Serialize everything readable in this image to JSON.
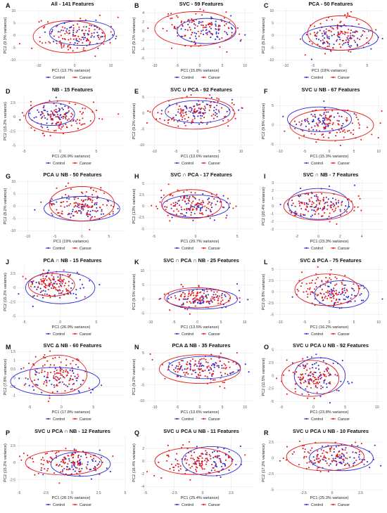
{
  "legend": {
    "control": "Control",
    "cancer": "Cancer"
  },
  "colors": {
    "control": "#2b2bd6",
    "cancer": "#e31a1c"
  },
  "chart_data": [
    {
      "type": "scatter",
      "label": "A",
      "title": "All - 141 Features",
      "xlabel": "PC1 (13.7% variance)",
      "ylabel": "PC2 (9.3% variance)",
      "xlim": [
        -16,
        14
      ],
      "ylim": [
        -11,
        11
      ],
      "xticks": [
        -10,
        0,
        10
      ],
      "yticks": [
        -10,
        -5,
        0,
        5,
        10
      ],
      "control": {
        "center": [
          2,
          1
        ],
        "rx": 9,
        "ry": 5
      },
      "cancer": {
        "center": [
          -1.5,
          -0.5
        ],
        "rx": 10,
        "ry": 6.5
      }
    },
    {
      "type": "scatter",
      "label": "B",
      "title": "SVC - 59 Features",
      "xlabel": "PC1 (15.8% variance)",
      "ylabel": "PC2 (9.1% variance)",
      "xlim": [
        -12,
        12
      ],
      "ylim": [
        -7,
        5
      ],
      "xticks": [
        -10,
        -5,
        0,
        5,
        10
      ],
      "yticks": [
        -6,
        -4,
        -2,
        0,
        2,
        4
      ],
      "control": {
        "center": [
          1.5,
          0
        ],
        "rx": 6.5,
        "ry": 2.8
      },
      "cancer": {
        "center": [
          -1,
          0.5
        ],
        "rx": 9,
        "ry": 3.8
      }
    },
    {
      "type": "scatter",
      "label": "C",
      "title": "PCA - 50 Features",
      "xlabel": "PC1 (19% variance)",
      "ylabel": "PC2 (8.2% variance)",
      "xlim": [
        -12,
        8
      ],
      "ylim": [
        -11,
        11
      ],
      "xticks": [
        -10,
        -5,
        0,
        5
      ],
      "yticks": [
        -10,
        -5,
        0,
        5,
        10
      ],
      "control": {
        "center": [
          0,
          -1
        ],
        "rx": 7,
        "ry": 5
      },
      "cancer": {
        "center": [
          0,
          1
        ],
        "rx": 6,
        "ry": 7
      }
    },
    {
      "type": "scatter",
      "label": "D",
      "title": "NB - 15 Features",
      "xlabel": "PC1 (26.9% variance)",
      "ylabel": "PC2 (15.2% variance)",
      "xlim": [
        -6,
        9
      ],
      "ylim": [
        -5.5,
        4
      ],
      "xticks": [
        -5,
        0,
        5
      ],
      "yticks": [
        -5,
        -2.5,
        0,
        2.5
      ],
      "control": {
        "center": [
          -1.2,
          0.5
        ],
        "rx": 3.2,
        "ry": 2
      },
      "cancer": {
        "center": [
          0,
          0
        ],
        "rx": 4.8,
        "ry": 2.8
      }
    },
    {
      "type": "scatter",
      "label": "E",
      "title": "SVC ∪ PCA - 92 Features",
      "xlabel": "PC1 (13.6% variance)",
      "ylabel": "PC2 (9.2% variance)",
      "xlim": [
        -12,
        13
      ],
      "ylim": [
        -11,
        6
      ],
      "xticks": [
        -10,
        -5,
        0,
        5,
        10
      ],
      "yticks": [
        -10,
        -5,
        0,
        5
      ],
      "control": {
        "center": [
          0,
          0.5
        ],
        "rx": 7.5,
        "ry": 3.5
      },
      "cancer": {
        "center": [
          -1,
          0
        ],
        "rx": 9.5,
        "ry": 5
      }
    },
    {
      "type": "scatter",
      "label": "F",
      "title": "SVC ∪ NB - 67 Features",
      "xlabel": "PC1 (15.3% variance)",
      "ylabel": "PC2 (9.8% variance)",
      "xlim": [
        -11,
        11
      ],
      "ylim": [
        -6,
        8
      ],
      "xticks": [
        -10,
        -5,
        0,
        5,
        10
      ],
      "yticks": [
        -5,
        0,
        5
      ],
      "control": {
        "center": [
          -2,
          1.5
        ],
        "rx": 6.5,
        "ry": 3.2
      },
      "cancer": {
        "center": [
          0.5,
          0
        ],
        "rx": 8.5,
        "ry": 4
      }
    },
    {
      "type": "scatter",
      "label": "G",
      "title": "PCA ∪ NB - 50 Features",
      "xlabel": "PC1 (19% variance)",
      "ylabel": "PC2 (8.2% variance)",
      "xlim": [
        -12,
        8
      ],
      "ylim": [
        -11,
        11
      ],
      "xticks": [
        -10,
        -5,
        0,
        5
      ],
      "yticks": [
        -10,
        -5,
        0,
        5,
        10
      ],
      "control": {
        "center": [
          0,
          -1
        ],
        "rx": 7,
        "ry": 5
      },
      "cancer": {
        "center": [
          0,
          1
        ],
        "rx": 6,
        "ry": 7
      }
    },
    {
      "type": "scatter",
      "label": "H",
      "title": "SVC ∩ PCA - 17 Features",
      "xlabel": "PC1 (20.7% variance)",
      "ylabel": "PC2 (13% variance)",
      "xlim": [
        -6,
        7
      ],
      "ylim": [
        -6,
        6
      ],
      "xticks": [
        -5,
        0,
        5
      ],
      "yticks": [
        -5,
        -2.5,
        0,
        2.5,
        5
      ],
      "control": {
        "center": [
          0,
          0
        ],
        "rx": 4,
        "ry": 2.5
      },
      "cancer": {
        "center": [
          -0.5,
          0.5
        ],
        "rx": 3.6,
        "ry": 3.2
      }
    },
    {
      "type": "scatter",
      "label": "I",
      "title": "SVC ∩ NB - 7 Features",
      "xlabel": "PC1 (23.3% variance)",
      "ylabel": "PC2 (20.4% variance)",
      "xlim": [
        -4,
        6
      ],
      "ylim": [
        -3.5,
        3.5
      ],
      "xticks": [
        -2,
        0,
        2,
        4
      ],
      "yticks": [
        -3,
        -2,
        -1,
        0,
        1,
        2,
        3
      ],
      "control": {
        "center": [
          0,
          0.3
        ],
        "rx": 2.8,
        "ry": 2
      },
      "cancer": {
        "center": [
          0,
          0
        ],
        "rx": 3.2,
        "ry": 1.8
      }
    },
    {
      "type": "scatter",
      "label": "J",
      "title": "PCA ∩ NB - 15 Features",
      "xlabel": "PC1 (26.9% variance)",
      "ylabel": "PC2 (15.2% variance)",
      "xlim": [
        -6,
        9
      ],
      "ylim": [
        -5.5,
        4
      ],
      "xticks": [
        -5,
        0,
        5
      ],
      "yticks": [
        -5,
        -2.5,
        0,
        2.5
      ],
      "control": {
        "center": [
          0,
          0
        ],
        "rx": 4.8,
        "ry": 2.8
      },
      "cancer": {
        "center": [
          -1.2,
          0.5
        ],
        "rx": 3.2,
        "ry": 2
      }
    },
    {
      "type": "scatter",
      "label": "K",
      "title": "SVC ∩ PCA ∩ NB - 25 Features",
      "xlabel": "PC1 (13.5% variance)",
      "ylabel": "PC2 (9.5% variance)",
      "xlim": [
        -11,
        12
      ],
      "ylim": [
        -7,
        12
      ],
      "xticks": [
        -10,
        -5,
        0,
        5,
        10
      ],
      "yticks": [
        -5,
        0,
        5,
        10
      ],
      "control": {
        "center": [
          1,
          0
        ],
        "rx": 7.5,
        "ry": 3.5
      },
      "cancer": {
        "center": [
          0,
          0.5
        ],
        "rx": 7,
        "ry": 3.5
      }
    },
    {
      "type": "scatter",
      "label": "L",
      "title": "SVC Δ PCA - 75 Features",
      "xlabel": "PC1 (16.2% variance)",
      "ylabel": "PC2 (9.8% variance)",
      "xlim": [
        -11,
        11
      ],
      "ylim": [
        -6,
        6
      ],
      "xticks": [
        -10,
        -5,
        0,
        5,
        10
      ],
      "yticks": [
        -5,
        -2.5,
        0,
        2.5,
        5
      ],
      "control": {
        "center": [
          2.5,
          -0.5
        ],
        "rx": 5.5,
        "ry": 3
      },
      "cancer": {
        "center": [
          -0.5,
          0.5
        ],
        "rx": 6.5,
        "ry": 3.5
      }
    },
    {
      "type": "scatter",
      "label": "M",
      "title": "SVC Δ NB - 60 Features",
      "xlabel": "PC1 (17.8% variance)",
      "ylabel": "PC2 (7.8% variance)",
      "xlim": [
        -7,
        10
      ],
      "ylim": [
        -1.5,
        1.6
      ],
      "xticks": [
        -5,
        0,
        5
      ],
      "yticks": [
        -1,
        -0.5,
        0,
        0.5,
        1,
        1.5
      ],
      "control": {
        "center": [
          -1,
          -0.2
        ],
        "rx": 7,
        "ry": 0.8
      },
      "cancer": {
        "center": [
          -0.5,
          0.2
        ],
        "rx": 4.5,
        "ry": 1.1
      }
    },
    {
      "type": "scatter",
      "label": "N",
      "title": "PCA Δ NB - 35 Features",
      "xlabel": "PC1 (13.6% variance)",
      "ylabel": "PC2 (9.2% variance)",
      "xlim": [
        -12,
        12
      ],
      "ylim": [
        -11,
        6
      ],
      "xticks": [
        -10,
        -5,
        0,
        5,
        10
      ],
      "yticks": [
        -10,
        -5,
        0,
        5
      ],
      "control": {
        "center": [
          1,
          0.5
        ],
        "rx": 8,
        "ry": 3.5
      },
      "cancer": {
        "center": [
          0,
          0
        ],
        "rx": 9,
        "ry": 4.5
      }
    },
    {
      "type": "scatter",
      "label": "O",
      "title": "SVC ∪ PCA ∪ NB - 92 Features",
      "xlabel": "PC1 (23.8% variance)",
      "ylabel": "PC2 (11.5% variance)",
      "xlim": [
        -6,
        11
      ],
      "ylim": [
        -5.5,
        5
      ],
      "xticks": [
        -5,
        0,
        5,
        10
      ],
      "yticks": [
        -5,
        -2.5,
        0,
        2.5,
        5
      ],
      "control": {
        "center": [
          1,
          0
        ],
        "rx": 4,
        "ry": 3.5
      },
      "cancer": {
        "center": [
          -0.5,
          -0.5
        ],
        "rx": 4.5,
        "ry": 3.5
      }
    },
    {
      "type": "scatter",
      "label": "P",
      "title": "SVC ∪ PCA ∩ NB - 12 Features",
      "xlabel": "PC1 (28.1% variance)",
      "ylabel": "PC2 (15.2% variance)",
      "xlim": [
        -5.2,
        5
      ],
      "ylim": [
        -4,
        4
      ],
      "xticks": [
        -5,
        -2.5,
        0,
        2.5,
        5
      ],
      "yticks": [
        -2.5,
        0,
        2.5
      ],
      "control": {
        "center": [
          0.8,
          -0.2
        ],
        "rx": 2.8,
        "ry": 1.8
      },
      "cancer": {
        "center": [
          -0.8,
          0
        ],
        "rx": 3.6,
        "ry": 1.8
      }
    },
    {
      "type": "scatter",
      "label": "Q",
      "title": "SVC ∪ PCA ∪ NB - 11 Features",
      "xlabel": "PC1 (25.4% variance)",
      "ylabel": "PC2 (16.4% variance)",
      "xlim": [
        -5,
        4.5
      ],
      "ylim": [
        -4.5,
        4
      ],
      "xticks": [
        -5,
        -2.5,
        0,
        2.5
      ],
      "yticks": [
        -4,
        -2,
        0,
        2
      ],
      "control": {
        "center": [
          0.8,
          0
        ],
        "rx": 2.6,
        "ry": 2.3
      },
      "cancer": {
        "center": [
          -0.8,
          0
        ],
        "rx": 3.4,
        "ry": 2.1
      }
    },
    {
      "type": "scatter",
      "label": "R",
      "title": "SVC ∪ PCA ∪ NB - 10 Features",
      "xlabel": "PC1 (25.3% variance)",
      "ylabel": "PC2 (17.2% variance)",
      "xlim": [
        -5,
        4.5
      ],
      "ylim": [
        -5,
        3.5
      ],
      "xticks": [
        -2.5,
        0,
        2.5
      ],
      "yticks": [
        -5,
        -2.5,
        0,
        2.5
      ],
      "control": {
        "center": [
          0.8,
          0
        ],
        "rx": 2.8,
        "ry": 2
      },
      "cancer": {
        "center": [
          -0.6,
          0.2
        ],
        "rx": 3.4,
        "ry": 2.2
      }
    }
  ]
}
